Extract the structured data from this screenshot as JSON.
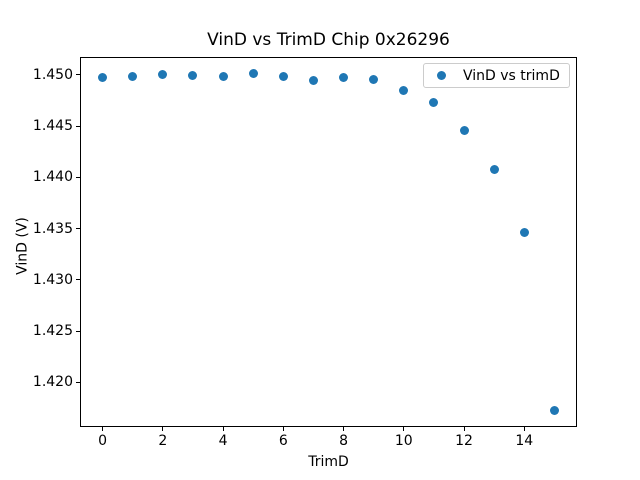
{
  "chart_data": {
    "type": "scatter",
    "title": "VinD vs TrimD Chip 0x26296",
    "xlabel": "TrimD",
    "ylabel": "VinD (V)",
    "legend": {
      "label": "VinD vs trimD",
      "position": "upper right"
    },
    "marker_color": "#1f77b4",
    "x": [
      0,
      1,
      2,
      3,
      4,
      5,
      6,
      7,
      8,
      9,
      10,
      11,
      12,
      13,
      14,
      15
    ],
    "y": [
      1.4497,
      1.4498,
      1.45,
      1.4499,
      1.4498,
      1.4501,
      1.4498,
      1.4494,
      1.4497,
      1.4495,
      1.4485,
      1.4473,
      1.4446,
      1.4408,
      1.4346,
      1.4173
    ],
    "xlim": [
      -0.75,
      15.75
    ],
    "ylim": [
      1.41566,
      1.45174
    ],
    "xticks": [
      0,
      2,
      4,
      6,
      8,
      10,
      12,
      14
    ],
    "xtick_labels": [
      "0",
      "2",
      "4",
      "6",
      "8",
      "10",
      "12",
      "14"
    ],
    "yticks": [
      1.42,
      1.425,
      1.43,
      1.435,
      1.44,
      1.445,
      1.45
    ],
    "ytick_labels": [
      "1.420",
      "1.425",
      "1.430",
      "1.435",
      "1.440",
      "1.445",
      "1.450"
    ],
    "grid": false
  }
}
